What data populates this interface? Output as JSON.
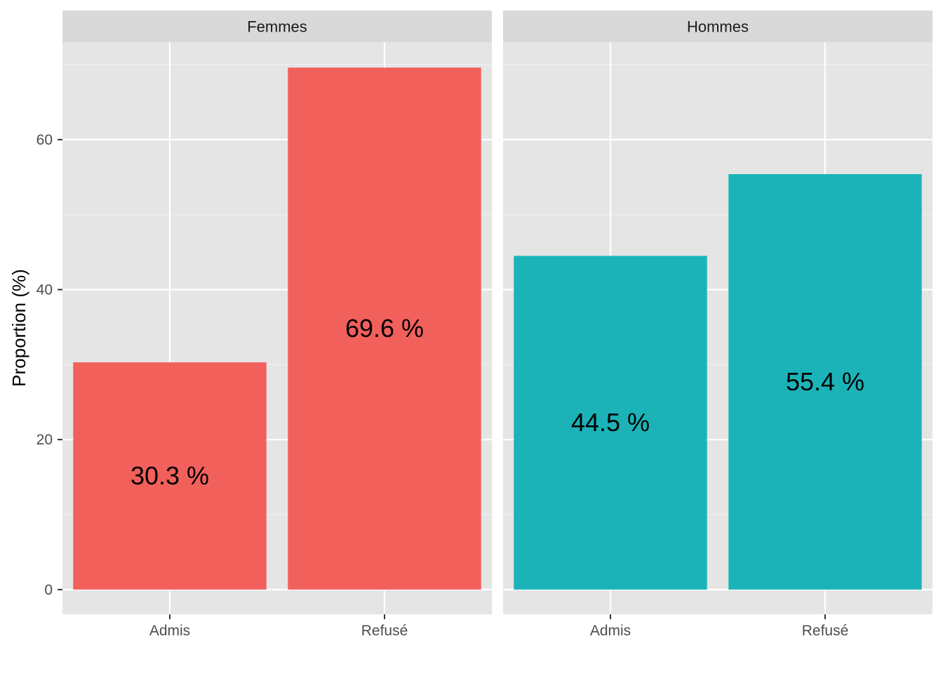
{
  "chart_data": {
    "type": "bar",
    "ylabel": "Proportion (%)",
    "ylim": [
      -3.3,
      73
    ],
    "y_ticks": [
      0,
      20,
      40,
      60
    ],
    "grid": true,
    "label_suffix": " %",
    "categories": [
      "Admis",
      "Refusé"
    ],
    "facets": [
      {
        "name": "Femmes",
        "color": "#F2605C",
        "values": [
          30.3,
          69.6
        ]
      },
      {
        "name": "Hommes",
        "color": "#1BB3B8",
        "values": [
          44.5,
          55.4
        ]
      }
    ]
  }
}
